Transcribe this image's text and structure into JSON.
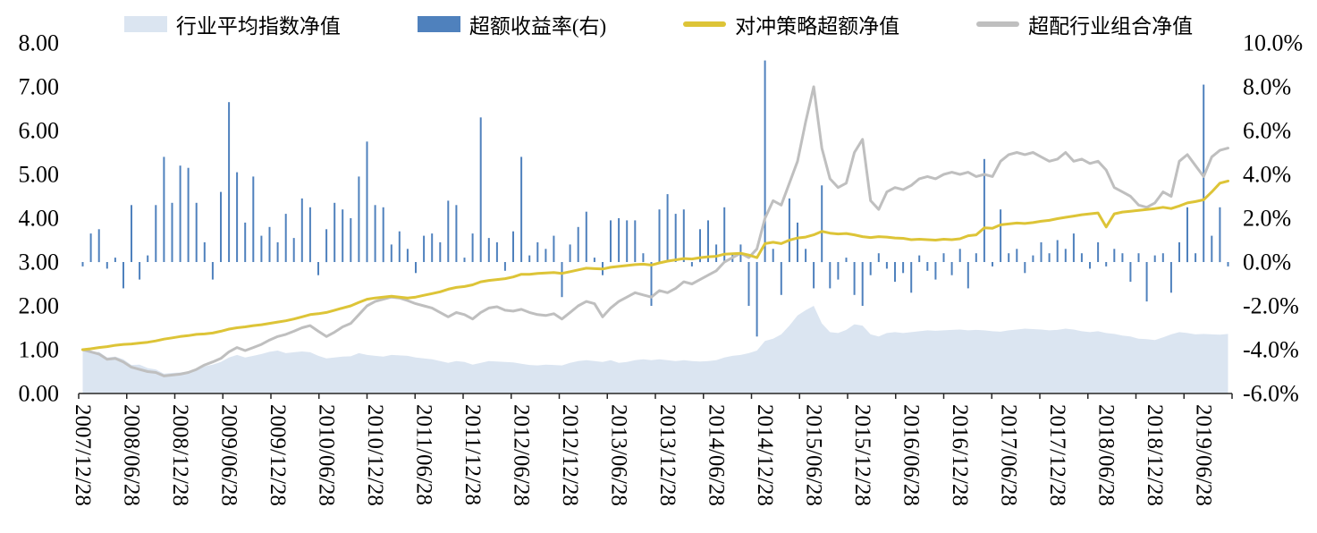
{
  "chart_data": {
    "type": "combo",
    "title": "",
    "x_start": "2007/12/28",
    "x_frequency": "monthly",
    "x_tick_every": 6,
    "x_tick_labels": [
      "2007/12/28",
      "2008/06/28",
      "2008/12/28",
      "2009/06/28",
      "2009/12/28",
      "2010/06/28",
      "2010/12/28",
      "2011/06/28",
      "2011/12/28",
      "2012/06/28",
      "2012/12/28",
      "2013/06/28",
      "2013/12/28",
      "2014/06/28",
      "2014/12/28",
      "2015/06/28",
      "2015/12/28",
      "2016/06/28",
      "2016/12/28",
      "2017/06/28",
      "2017/12/28",
      "2018/06/28",
      "2018/12/28",
      "2019/06/28"
    ],
    "y_axis_left": {
      "min": 0,
      "max": 8,
      "tick_labels": [
        "8.00",
        "7.00",
        "6.00",
        "5.00",
        "4.00",
        "3.00",
        "2.00",
        "1.00",
        "0.00"
      ]
    },
    "y_axis_right": {
      "min": -6,
      "max": 10,
      "tick_labels": [
        "10.0%",
        "8.0%",
        "6.0%",
        "4.0%",
        "2.0%",
        "0.0%",
        "-2.0%",
        "-4.0%",
        "-6.0%"
      ]
    },
    "axis_color": "#262626",
    "series": [
      {
        "name": "行业平均指数净值",
        "type": "area",
        "axis": "left",
        "color": "#dbe5f1",
        "values": [
          1.0,
          0.93,
          0.95,
          0.82,
          0.84,
          0.78,
          0.65,
          0.66,
          0.58,
          0.55,
          0.45,
          0.47,
          0.48,
          0.5,
          0.55,
          0.62,
          0.66,
          0.72,
          0.82,
          0.88,
          0.82,
          0.86,
          0.9,
          0.95,
          0.98,
          0.92,
          0.94,
          0.96,
          0.94,
          0.86,
          0.8,
          0.82,
          0.84,
          0.85,
          0.92,
          0.88,
          0.86,
          0.84,
          0.88,
          0.87,
          0.86,
          0.82,
          0.8,
          0.78,
          0.74,
          0.7,
          0.74,
          0.72,
          0.66,
          0.7,
          0.74,
          0.73,
          0.72,
          0.71,
          0.68,
          0.65,
          0.64,
          0.66,
          0.65,
          0.64,
          0.7,
          0.74,
          0.76,
          0.74,
          0.72,
          0.76,
          0.7,
          0.72,
          0.76,
          0.78,
          0.76,
          0.78,
          0.76,
          0.74,
          0.76,
          0.74,
          0.73,
          0.74,
          0.76,
          0.82,
          0.86,
          0.88,
          0.92,
          0.98,
          1.2,
          1.25,
          1.35,
          1.55,
          1.78,
          1.9,
          2.0,
          1.6,
          1.4,
          1.38,
          1.45,
          1.58,
          1.55,
          1.35,
          1.3,
          1.38,
          1.4,
          1.38,
          1.4,
          1.42,
          1.44,
          1.43,
          1.44,
          1.45,
          1.46,
          1.44,
          1.45,
          1.44,
          1.42,
          1.41,
          1.44,
          1.46,
          1.48,
          1.47,
          1.46,
          1.44,
          1.45,
          1.48,
          1.46,
          1.42,
          1.4,
          1.42,
          1.38,
          1.36,
          1.32,
          1.3,
          1.25,
          1.24,
          1.22,
          1.28,
          1.35,
          1.4,
          1.38,
          1.35,
          1.36,
          1.35,
          1.34,
          1.36
        ]
      },
      {
        "name": "超额收益率(右)",
        "type": "bar",
        "axis": "right",
        "color": "#4f81bd",
        "values": [
          -0.2,
          1.3,
          1.5,
          -0.3,
          0.2,
          -1.2,
          2.6,
          -0.8,
          0.3,
          2.6,
          4.8,
          2.7,
          4.4,
          4.3,
          2.7,
          0.9,
          -0.8,
          3.2,
          7.3,
          4.1,
          1.8,
          3.9,
          1.2,
          1.6,
          0.9,
          2.2,
          1.1,
          2.9,
          2.5,
          -0.6,
          1.5,
          2.7,
          2.4,
          2.0,
          3.9,
          5.5,
          2.6,
          2.5,
          0.8,
          1.4,
          0.6,
          -0.5,
          1.2,
          1.3,
          0.9,
          2.8,
          2.6,
          0.2,
          1.3,
          6.6,
          1.1,
          0.9,
          -0.4,
          1.4,
          4.8,
          0.3,
          0.9,
          0.6,
          1.2,
          -1.6,
          0.8,
          1.6,
          2.3,
          0.2,
          -0.6,
          1.9,
          2.0,
          1.9,
          1.9,
          0.4,
          -2.0,
          2.4,
          3.1,
          2.2,
          2.4,
          -0.2,
          1.5,
          1.9,
          0.8,
          2.5,
          0.4,
          0.8,
          -2.0,
          -3.4,
          9.2,
          0.6,
          -1.5,
          2.9,
          1.8,
          0.6,
          -1.2,
          3.5,
          -1.2,
          -0.8,
          0.2,
          -1.5,
          -2.0,
          -0.6,
          0.4,
          -0.3,
          -0.9,
          -0.5,
          -1.4,
          0.3,
          -0.4,
          -0.8,
          0.4,
          -0.6,
          0.6,
          -1.2,
          0.4,
          4.7,
          -0.2,
          2.4,
          0.4,
          0.6,
          -0.5,
          0.3,
          0.9,
          0.4,
          1.0,
          0.6,
          1.3,
          0.4,
          -0.3,
          0.9,
          -0.2,
          0.6,
          0.4,
          -0.9,
          0.4,
          -1.8,
          0.3,
          0.4,
          -1.4,
          0.9,
          2.5,
          0.4,
          8.1,
          1.2,
          2.5,
          -0.2
        ]
      },
      {
        "name": "对冲策略超额净值",
        "type": "line",
        "axis": "left",
        "color": "#ddc437",
        "values": [
          1.0,
          1.02,
          1.05,
          1.07,
          1.1,
          1.12,
          1.13,
          1.15,
          1.17,
          1.2,
          1.24,
          1.27,
          1.3,
          1.32,
          1.35,
          1.36,
          1.38,
          1.42,
          1.47,
          1.5,
          1.52,
          1.55,
          1.57,
          1.6,
          1.63,
          1.66,
          1.7,
          1.75,
          1.8,
          1.82,
          1.85,
          1.9,
          1.95,
          2.0,
          2.08,
          2.15,
          2.18,
          2.2,
          2.22,
          2.2,
          2.18,
          2.2,
          2.24,
          2.28,
          2.32,
          2.38,
          2.42,
          2.44,
          2.48,
          2.55,
          2.58,
          2.6,
          2.62,
          2.66,
          2.72,
          2.72,
          2.74,
          2.75,
          2.76,
          2.74,
          2.78,
          2.82,
          2.86,
          2.85,
          2.84,
          2.88,
          2.9,
          2.92,
          2.94,
          2.95,
          2.93,
          2.98,
          3.02,
          3.05,
          3.08,
          3.07,
          3.1,
          3.12,
          3.13,
          3.18,
          3.19,
          3.2,
          3.16,
          3.1,
          3.42,
          3.45,
          3.42,
          3.5,
          3.55,
          3.57,
          3.62,
          3.7,
          3.66,
          3.64,
          3.65,
          3.62,
          3.58,
          3.56,
          3.58,
          3.57,
          3.55,
          3.54,
          3.51,
          3.52,
          3.51,
          3.5,
          3.52,
          3.51,
          3.53,
          3.6,
          3.62,
          3.78,
          3.77,
          3.85,
          3.87,
          3.89,
          3.88,
          3.9,
          3.93,
          3.95,
          3.99,
          4.02,
          4.05,
          4.08,
          4.1,
          4.12,
          3.8,
          4.1,
          4.14,
          4.16,
          4.18,
          4.2,
          4.22,
          4.25,
          4.22,
          4.28,
          4.35,
          4.38,
          4.42,
          4.6,
          4.8,
          4.85
        ]
      },
      {
        "name": "超配行业组合净值",
        "type": "line",
        "axis": "left",
        "color": "#bfbfbf",
        "values": [
          1.0,
          0.95,
          0.9,
          0.78,
          0.8,
          0.72,
          0.6,
          0.55,
          0.5,
          0.48,
          0.4,
          0.42,
          0.44,
          0.48,
          0.55,
          0.65,
          0.72,
          0.8,
          0.95,
          1.05,
          0.98,
          1.05,
          1.12,
          1.22,
          1.3,
          1.35,
          1.42,
          1.5,
          1.55,
          1.42,
          1.3,
          1.4,
          1.52,
          1.6,
          1.8,
          2.0,
          2.1,
          2.15,
          2.2,
          2.18,
          2.12,
          2.05,
          2.0,
          1.95,
          1.85,
          1.75,
          1.85,
          1.8,
          1.7,
          1.85,
          1.95,
          1.98,
          1.9,
          1.88,
          1.92,
          1.85,
          1.8,
          1.78,
          1.82,
          1.7,
          1.85,
          2.0,
          2.1,
          2.05,
          1.75,
          1.95,
          2.1,
          2.2,
          2.3,
          2.25,
          2.2,
          2.35,
          2.3,
          2.4,
          2.55,
          2.5,
          2.6,
          2.7,
          2.8,
          3.0,
          3.1,
          3.2,
          3.1,
          3.3,
          4.0,
          4.4,
          4.3,
          4.8,
          5.3,
          6.2,
          7.0,
          5.6,
          4.9,
          4.7,
          4.8,
          5.5,
          5.8,
          4.4,
          4.2,
          4.6,
          4.7,
          4.65,
          4.75,
          4.9,
          4.95,
          4.9,
          5.0,
          5.05,
          5.0,
          5.05,
          4.95,
          5.0,
          4.95,
          5.3,
          5.45,
          5.5,
          5.45,
          5.5,
          5.4,
          5.3,
          5.35,
          5.5,
          5.3,
          5.35,
          5.25,
          5.3,
          5.1,
          4.7,
          4.6,
          4.5,
          4.3,
          4.25,
          4.35,
          4.6,
          4.5,
          5.3,
          5.45,
          5.2,
          4.95,
          5.4,
          5.55,
          5.6
        ]
      }
    ],
    "legend_position": "top"
  }
}
